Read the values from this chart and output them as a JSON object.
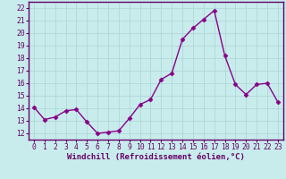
{
  "x": [
    0,
    1,
    2,
    3,
    4,
    5,
    6,
    7,
    8,
    9,
    10,
    11,
    12,
    13,
    14,
    15,
    16,
    17,
    18,
    19,
    20,
    21,
    22,
    23
  ],
  "y": [
    14.1,
    13.1,
    13.3,
    13.8,
    13.9,
    12.9,
    12.0,
    12.1,
    12.2,
    13.2,
    14.3,
    14.7,
    16.3,
    16.8,
    19.5,
    20.4,
    21.1,
    21.8,
    18.2,
    15.9,
    15.1,
    15.9,
    16.0,
    14.5
  ],
  "line_color": "#880088",
  "marker": "D",
  "marker_size": 2.5,
  "background_color": "#c8ecec",
  "grid_color": "#b0d8d8",
  "xlabel": "Windchill (Refroidissement éolien,°C)",
  "ylim": [
    11.5,
    22.5
  ],
  "xlim": [
    -0.5,
    23.5
  ],
  "yticks": [
    12,
    13,
    14,
    15,
    16,
    17,
    18,
    19,
    20,
    21,
    22
  ],
  "xticks": [
    0,
    1,
    2,
    3,
    4,
    5,
    6,
    7,
    8,
    9,
    10,
    11,
    12,
    13,
    14,
    15,
    16,
    17,
    18,
    19,
    20,
    21,
    22,
    23
  ],
  "tick_color": "#660066",
  "spine_color": "#660066",
  "xlabel_fontsize": 6.5,
  "tick_label_fontsize": 5.8,
  "line_width": 1.0
}
